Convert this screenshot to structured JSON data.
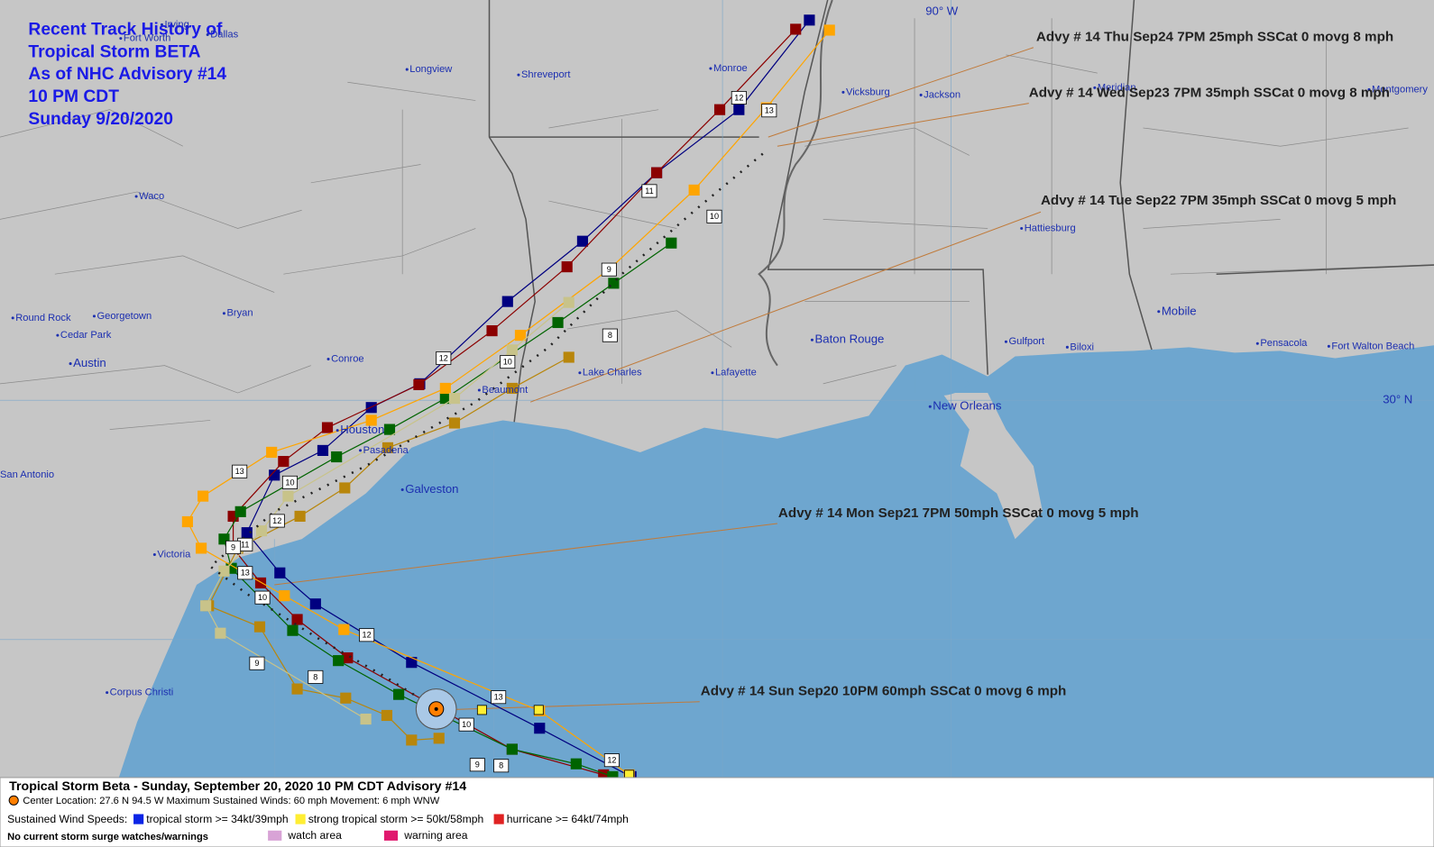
{
  "title_block": {
    "lines": [
      "Recent Track History of",
      "Tropical Storm BETA",
      "As of NHC Advisory #14",
      "10 PM CDT",
      "Sunday 9/20/2020"
    ]
  },
  "cities": [
    "Irving",
    "Dallas",
    "Fort Worth",
    "Longview",
    "Shreveport",
    "Monroe",
    "Vicksburg",
    "Jackson",
    "Meridian",
    "Montgomery",
    "Waco",
    "Bryan",
    "Round Rock",
    "Georgetown",
    "Cedar Park",
    "Austin",
    "Conroe",
    "Houston",
    "Pasadena",
    "Beaumont",
    "Lake Charles",
    "Lafayette",
    "Baton Rouge",
    "Hattiesburg",
    "Mobile",
    "Gulfport",
    "Biloxi",
    "Pensacola",
    "Fort Walton Beach",
    "New Orleans",
    "Galveston",
    "San Antonio",
    "Victoria",
    "Corpus Christi"
  ],
  "grid_labels": [
    "90° W",
    "30° N"
  ],
  "advisories": [
    "Advy # 14 Thu Sep24 7PM  25mph SSCat 0 movg 8 mph",
    "Advy # 14 Wed Sep23 7PM  35mph SSCat 0 movg 8 mph",
    "Advy # 14 Tue Sep22 7PM  35mph SSCat 0 movg 5 mph",
    "Advy # 14 Mon Sep21 7PM  50mph SSCat 0 movg 5 mph",
    "Advy # 14 Sun Sep20 10PM  60mph SSCat 0 movg 6 mph"
  ],
  "track_labels": [
    "12",
    "13",
    "11",
    "10",
    "9",
    "8",
    "12",
    "10",
    "13",
    "10",
    "12",
    "11",
    "9",
    "13",
    "10",
    "12",
    "9",
    "8",
    "13",
    "10",
    "12",
    "9",
    "8"
  ],
  "legend": {
    "header": "Tropical Storm Beta  -  Sunday, September 20, 2020  10 PM CDT   Advisory #14",
    "center": "Center Location: 27.6 N  94.5 W   Maximum Sustained Winds: 60 mph  Movement: 6 mph WNW",
    "wind_title": "Sustained Wind Speeds:",
    "wind_items": [
      "tropical storm >= 34kt/39mph",
      "strong tropical storm >= 50kt/58mph",
      "hurricane >= 64kt/74mph"
    ],
    "surge": "No current storm surge watches/warnings",
    "areas": [
      "watch area",
      "warning area"
    ]
  }
}
